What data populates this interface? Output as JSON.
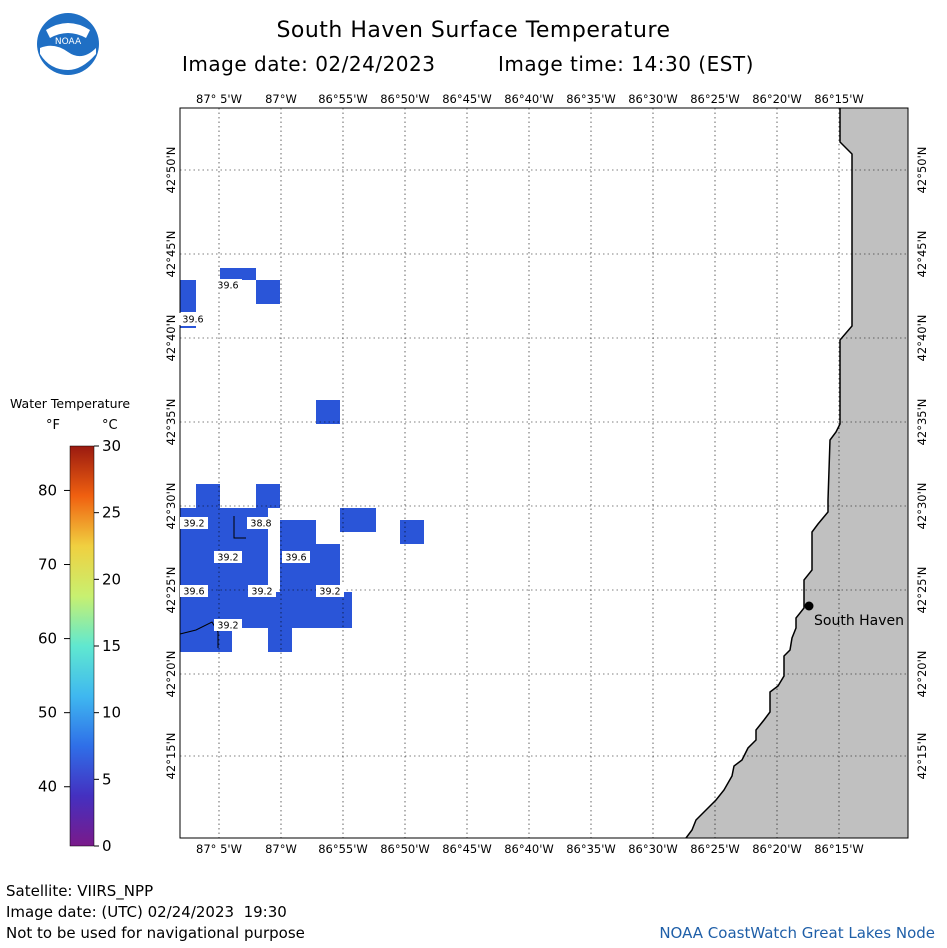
{
  "header": {
    "title": "South Haven Surface Temperature",
    "image_date": "Image date: 02/24/2023",
    "image_time": "Image time: 14:30 (EST)"
  },
  "logo": {
    "text": "NOAA",
    "icon": "noaa-logo-icon"
  },
  "map": {
    "lon_labels": [
      "87° 5'W",
      "87°W",
      "86°55'W",
      "86°50'W",
      "86°45'W",
      "86°40'W",
      "86°35'W",
      "86°30'W",
      "86°25'W",
      "86°20'W",
      "86°15'W"
    ],
    "lat_labels": [
      "42°50'N",
      "42°45'N",
      "42°40'N",
      "42°35'N",
      "42°30'N",
      "42°25'N",
      "42°20'N",
      "42°15'N"
    ],
    "temperature_labels": [
      "39.6",
      "39.6",
      "39.2",
      "38.8",
      "39.2",
      "39.6",
      "39.6",
      "39.2",
      "39.2",
      "39.2"
    ],
    "city": "South Haven",
    "colors": {
      "water_cell": "#2a55d8",
      "land": "#c0c0c0",
      "grid": "#000000",
      "coast": "#000000"
    }
  },
  "legend": {
    "title": "Water Temperature",
    "unit_f": "°F",
    "unit_c": "°C",
    "f_ticks": [
      "80",
      "70",
      "60",
      "50",
      "40"
    ],
    "c_ticks": [
      "30",
      "25",
      "20",
      "15",
      "10",
      "5",
      "0"
    ],
    "range_c": [
      0,
      30
    ],
    "colors": [
      "#7a1a8a",
      "#3a48d8",
      "#2a9af0",
      "#5fe0f0",
      "#7af07a",
      "#f0f060",
      "#f8a020",
      "#e84010",
      "#a01a10"
    ]
  },
  "footer": {
    "satellite": "Satellite: VIIRS_NPP",
    "utc_date": "Image date: (UTC) 02/24/2023  19:30",
    "disclaimer": "Not to be used for navigational purpose",
    "node": "NOAA CoastWatch Great Lakes Node"
  }
}
